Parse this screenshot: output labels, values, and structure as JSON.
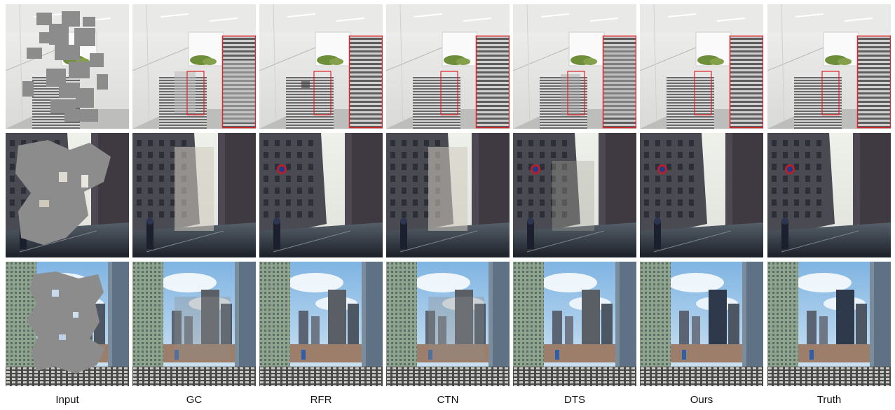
{
  "columns": [
    "Input",
    "GC",
    "RFR",
    "CTN",
    "DTS",
    "Ours",
    "Truth"
  ],
  "rows": [
    {
      "scene": "bathroom-radiator",
      "has_zoom_inset": true
    },
    {
      "scene": "city-street",
      "has_zoom_inset": false
    },
    {
      "scene": "city-skyline",
      "has_zoom_inset": false
    }
  ],
  "colors": {
    "mask_gray": "#8c8c8c",
    "inset_border": "#e0242a",
    "label_text": "#111111"
  }
}
